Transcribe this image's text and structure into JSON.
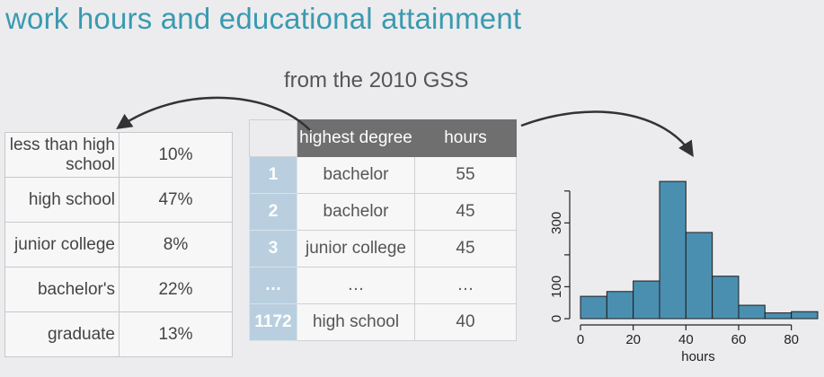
{
  "title": "work hours and educational attainment",
  "subtitle": "from the 2010 GSS",
  "summary_table": [
    {
      "label": "less than high school",
      "percent": "10%"
    },
    {
      "label": "high school",
      "percent": "47%"
    },
    {
      "label": "junior college",
      "percent": "8%"
    },
    {
      "label": "bachelor's",
      "percent": "22%"
    },
    {
      "label": "graduate",
      "percent": "13%"
    }
  ],
  "data_table": {
    "headers": [
      "highest degree",
      "hours"
    ],
    "rows": [
      {
        "index": "1",
        "degree": "bachelor",
        "hours": "55"
      },
      {
        "index": "2",
        "degree": "bachelor",
        "hours": "45"
      },
      {
        "index": "3",
        "degree": "junior college",
        "hours": "45"
      },
      {
        "index": "…",
        "degree": "…",
        "hours": "…"
      },
      {
        "index": "1172",
        "degree": "high school",
        "hours": "40"
      }
    ]
  },
  "chart_data": {
    "type": "bar",
    "title": "",
    "xlabel": "hours",
    "ylabel": "",
    "bin_edges": [
      0,
      10,
      20,
      30,
      40,
      50,
      60,
      70,
      80,
      90
    ],
    "values": [
      70,
      85,
      118,
      430,
      270,
      133,
      42,
      18,
      22
    ],
    "xlim": [
      0,
      90
    ],
    "ylim": [
      0,
      450
    ],
    "x_ticks": [
      0,
      20,
      40,
      60,
      80
    ],
    "y_ticks": [
      0,
      100,
      300
    ],
    "bar_color": "#4a8fb0",
    "grid": false
  }
}
